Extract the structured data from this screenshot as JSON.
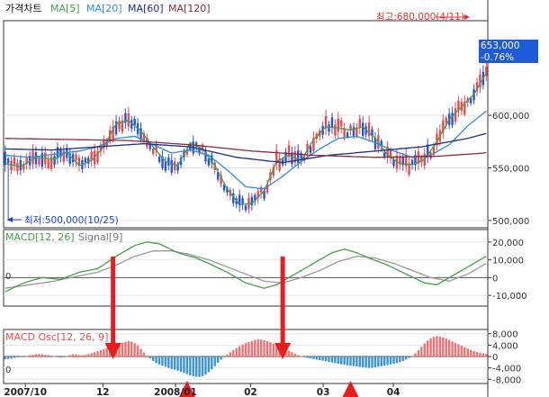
{
  "chart_data": [
    {
      "type": "candlestick",
      "title": "가격차트",
      "legend": [
        {
          "name": "MA[5]",
          "color": "#43a047"
        },
        {
          "name": "MA[20]",
          "color": "#2e8bd6"
        },
        {
          "name": "MA[60]",
          "color": "#1a2d8c"
        },
        {
          "name": "MA[120]",
          "color": "#8b2a3a"
        }
      ],
      "y_ticks": [
        "600,000",
        "550,000",
        "500,000"
      ],
      "y_tick_values": [
        600000,
        550000,
        500000
      ],
      "ylim": [
        493000,
        690000
      ],
      "current_price": "653,000",
      "change_pct": "-0.76%",
      "high_annotation": "최고:680,000(4/11)",
      "low_annotation": "최저:500,000(10/25)",
      "high_value": 680000,
      "low_value": 500000,
      "colors": {
        "up": "#e8484f",
        "down": "#2455d6"
      },
      "ma_levels": {
        "ma5": [
          [
            0,
            554000
          ],
          [
            5,
            551000
          ],
          [
            10,
            560000
          ],
          [
            16,
            558000
          ],
          [
            20,
            565000
          ],
          [
            24,
            552000
          ],
          [
            28,
            557000
          ],
          [
            32,
            570000
          ],
          [
            36,
            592000
          ],
          [
            40,
            595000
          ],
          [
            44,
            585000
          ],
          [
            48,
            570000
          ],
          [
            52,
            556000
          ],
          [
            56,
            552000
          ],
          [
            60,
            574000
          ],
          [
            64,
            568000
          ],
          [
            68,
            552000
          ],
          [
            72,
            530000
          ],
          [
            76,
            515000
          ],
          [
            80,
            516000
          ],
          [
            84,
            528000
          ],
          [
            88,
            556000
          ],
          [
            92,
            562000
          ],
          [
            96,
            557000
          ],
          [
            100,
            577000
          ],
          [
            104,
            589000
          ],
          [
            108,
            588000
          ],
          [
            112,
            586000
          ],
          [
            116,
            589000
          ],
          [
            120,
            578000
          ],
          [
            124,
            562000
          ],
          [
            128,
            554000
          ],
          [
            132,
            553000
          ],
          [
            136,
            558000
          ],
          [
            140,
            575000
          ],
          [
            144,
            596000
          ],
          [
            148,
            608000
          ],
          [
            152,
            620000
          ],
          [
            156,
            640000
          ],
          [
            160,
            655000
          ],
          [
            164,
            662000
          ],
          [
            168,
            664000
          ]
        ],
        "ma20": [
          [
            0,
            562000
          ],
          [
            8,
            560000
          ],
          [
            16,
            563000
          ],
          [
            24,
            566000
          ],
          [
            30,
            570000
          ],
          [
            36,
            578000
          ],
          [
            42,
            580000
          ],
          [
            48,
            572000
          ],
          [
            54,
            564000
          ],
          [
            60,
            567000
          ],
          [
            66,
            562000
          ],
          [
            72,
            548000
          ],
          [
            78,
            532000
          ],
          [
            84,
            530000
          ],
          [
            90,
            542000
          ],
          [
            96,
            556000
          ],
          [
            102,
            568000
          ],
          [
            108,
            578000
          ],
          [
            114,
            580000
          ],
          [
            120,
            574000
          ],
          [
            126,
            566000
          ],
          [
            132,
            560000
          ],
          [
            138,
            562000
          ],
          [
            144,
            572000
          ],
          [
            150,
            590000
          ],
          [
            156,
            604000
          ],
          [
            162,
            620000
          ],
          [
            168,
            636000
          ]
        ],
        "ma60": [
          [
            0,
            568000
          ],
          [
            15,
            567000
          ],
          [
            30,
            570000
          ],
          [
            45,
            573000
          ],
          [
            60,
            570000
          ],
          [
            75,
            560000
          ],
          [
            90,
            555000
          ],
          [
            105,
            562000
          ],
          [
            120,
            566000
          ],
          [
            135,
            570000
          ],
          [
            150,
            578000
          ],
          [
            160,
            586000
          ],
          [
            168,
            594000
          ]
        ],
        "ma120": [
          [
            0,
            578000
          ],
          [
            20,
            577000
          ],
          [
            40,
            576000
          ],
          [
            60,
            572000
          ],
          [
            80,
            566000
          ],
          [
            100,
            562000
          ],
          [
            120,
            560000
          ],
          [
            140,
            561000
          ],
          [
            155,
            564000
          ],
          [
            168,
            572000
          ]
        ]
      }
    },
    {
      "type": "line",
      "title": "MACD[12, 26]",
      "legend": [
        {
          "name": "MACD[12, 26]",
          "color": "#43a047"
        },
        {
          "name": "Signal[9]",
          "color": "#999999"
        }
      ],
      "y_ticks": [
        "20,000",
        "10,000",
        "0",
        "-10,000"
      ],
      "y_tick_values": [
        20000,
        10000,
        0,
        -10000
      ],
      "ylim": [
        -16000,
        27000
      ],
      "zero_label": "0",
      "macd": [
        [
          0,
          -8000
        ],
        [
          6,
          -3000
        ],
        [
          12,
          0
        ],
        [
          18,
          -1000
        ],
        [
          24,
          3000
        ],
        [
          30,
          5000
        ],
        [
          36,
          12000
        ],
        [
          42,
          18000
        ],
        [
          46,
          20000
        ],
        [
          50,
          19000
        ],
        [
          56,
          14000
        ],
        [
          62,
          11000
        ],
        [
          66,
          8000
        ],
        [
          72,
          3000
        ],
        [
          78,
          -3000
        ],
        [
          84,
          -6000
        ],
        [
          88,
          -4000
        ],
        [
          94,
          2000
        ],
        [
          100,
          8000
        ],
        [
          106,
          14000
        ],
        [
          110,
          16000
        ],
        [
          114,
          14000
        ],
        [
          118,
          11000
        ],
        [
          124,
          7000
        ],
        [
          130,
          2000
        ],
        [
          136,
          -3000
        ],
        [
          140,
          -4000
        ],
        [
          146,
          2000
        ],
        [
          152,
          8000
        ],
        [
          158,
          14000
        ],
        [
          162,
          20000
        ],
        [
          166,
          22000
        ],
        [
          168,
          21000
        ]
      ],
      "signal": [
        [
          0,
          -6000
        ],
        [
          8,
          -4000
        ],
        [
          16,
          -2000
        ],
        [
          24,
          1000
        ],
        [
          30,
          3000
        ],
        [
          36,
          7000
        ],
        [
          42,
          12000
        ],
        [
          48,
          15000
        ],
        [
          54,
          15000
        ],
        [
          60,
          13000
        ],
        [
          66,
          10000
        ],
        [
          72,
          6000
        ],
        [
          78,
          2000
        ],
        [
          84,
          -2000
        ],
        [
          90,
          -3000
        ],
        [
          96,
          0
        ],
        [
          102,
          4000
        ],
        [
          108,
          9000
        ],
        [
          114,
          12000
        ],
        [
          120,
          11000
        ],
        [
          126,
          8000
        ],
        [
          132,
          4000
        ],
        [
          138,
          0
        ],
        [
          144,
          -2000
        ],
        [
          150,
          2000
        ],
        [
          156,
          8000
        ],
        [
          162,
          14000
        ],
        [
          168,
          19000
        ]
      ]
    },
    {
      "type": "bar",
      "title": "MACD Osc[12, 26, 9]",
      "y_ticks": [
        "8,000",
        "4,000",
        "0",
        "-4,000",
        "-8,000"
      ],
      "y_tick_values": [
        8000,
        4000,
        0,
        -4000,
        -8000
      ],
      "ylim": [
        -9500,
        9500
      ],
      "zero_label": "0",
      "colors": {
        "positive": "#f07272",
        "negative": "#3a93d4"
      },
      "values": [
        -1000,
        -900,
        -700,
        -500,
        -300,
        -200,
        -100,
        200,
        400,
        600,
        800,
        900,
        800,
        600,
        500,
        300,
        100,
        -200,
        -400,
        -200,
        200,
        500,
        800,
        700,
        500,
        400,
        600,
        900,
        1200,
        1500,
        1900,
        2200,
        2600,
        3000,
        3400,
        3700,
        4000,
        4400,
        4800,
        5100,
        5400,
        5200,
        4700,
        3900,
        2700,
        1400,
        300,
        -700,
        -1600,
        -2300,
        -2800,
        -3200,
        -3600,
        -4000,
        -4400,
        -4600,
        -5000,
        -5400,
        -5800,
        -6200,
        -6600,
        -6900,
        -7100,
        -7200,
        -6900,
        -6400,
        -5500,
        -4500,
        -3400,
        -2200,
        -1100,
        -200,
        700,
        1500,
        2200,
        2900,
        3600,
        4200,
        4700,
        5100,
        5500,
        5800,
        6000,
        5900,
        5700,
        5400,
        5000,
        4500,
        4000,
        3500,
        3000,
        2500,
        2000,
        1500,
        1000,
        500,
        100,
        -200,
        -500,
        -700,
        -900,
        -1100,
        -1300,
        -1500,
        -1700,
        -1900,
        -2100,
        -2300,
        -2500,
        -2700,
        -2900,
        -3100,
        -3200,
        -3400,
        -3500,
        -3700,
        -3800,
        -3900,
        -4000,
        -3900,
        -3800,
        -3600,
        -3400,
        -3200,
        -3000,
        -2800,
        -2600,
        -2300,
        -2000,
        -1600,
        -1100,
        -500,
        200,
        1100,
        2200,
        3400,
        4600,
        5600,
        6400,
        6900,
        7200,
        7000,
        6700,
        6300,
        5800,
        5300,
        4800,
        4300,
        3800,
        3300,
        2800,
        2300,
        1900,
        1600,
        1300,
        1100,
        900
      ],
      "signal_arrows": [
        {
          "category_index": 35,
          "direction": "down"
        },
        {
          "category_index": 59,
          "direction": "up"
        },
        {
          "category_index": 90,
          "direction": "down"
        },
        {
          "category_index": 112,
          "direction": "up"
        }
      ]
    }
  ],
  "x_axis": {
    "ticks": [
      {
        "label": "2007/10",
        "pos": 0.045,
        "bold": true
      },
      {
        "label": "12",
        "pos": 0.205,
        "bold": false
      },
      {
        "label": "2008/01",
        "pos": 0.355,
        "bold": true
      },
      {
        "label": "02",
        "pos": 0.51,
        "bold": false
      },
      {
        "label": "03",
        "pos": 0.66,
        "bold": false
      },
      {
        "label": "04",
        "pos": 0.805,
        "bold": false
      }
    ]
  }
}
